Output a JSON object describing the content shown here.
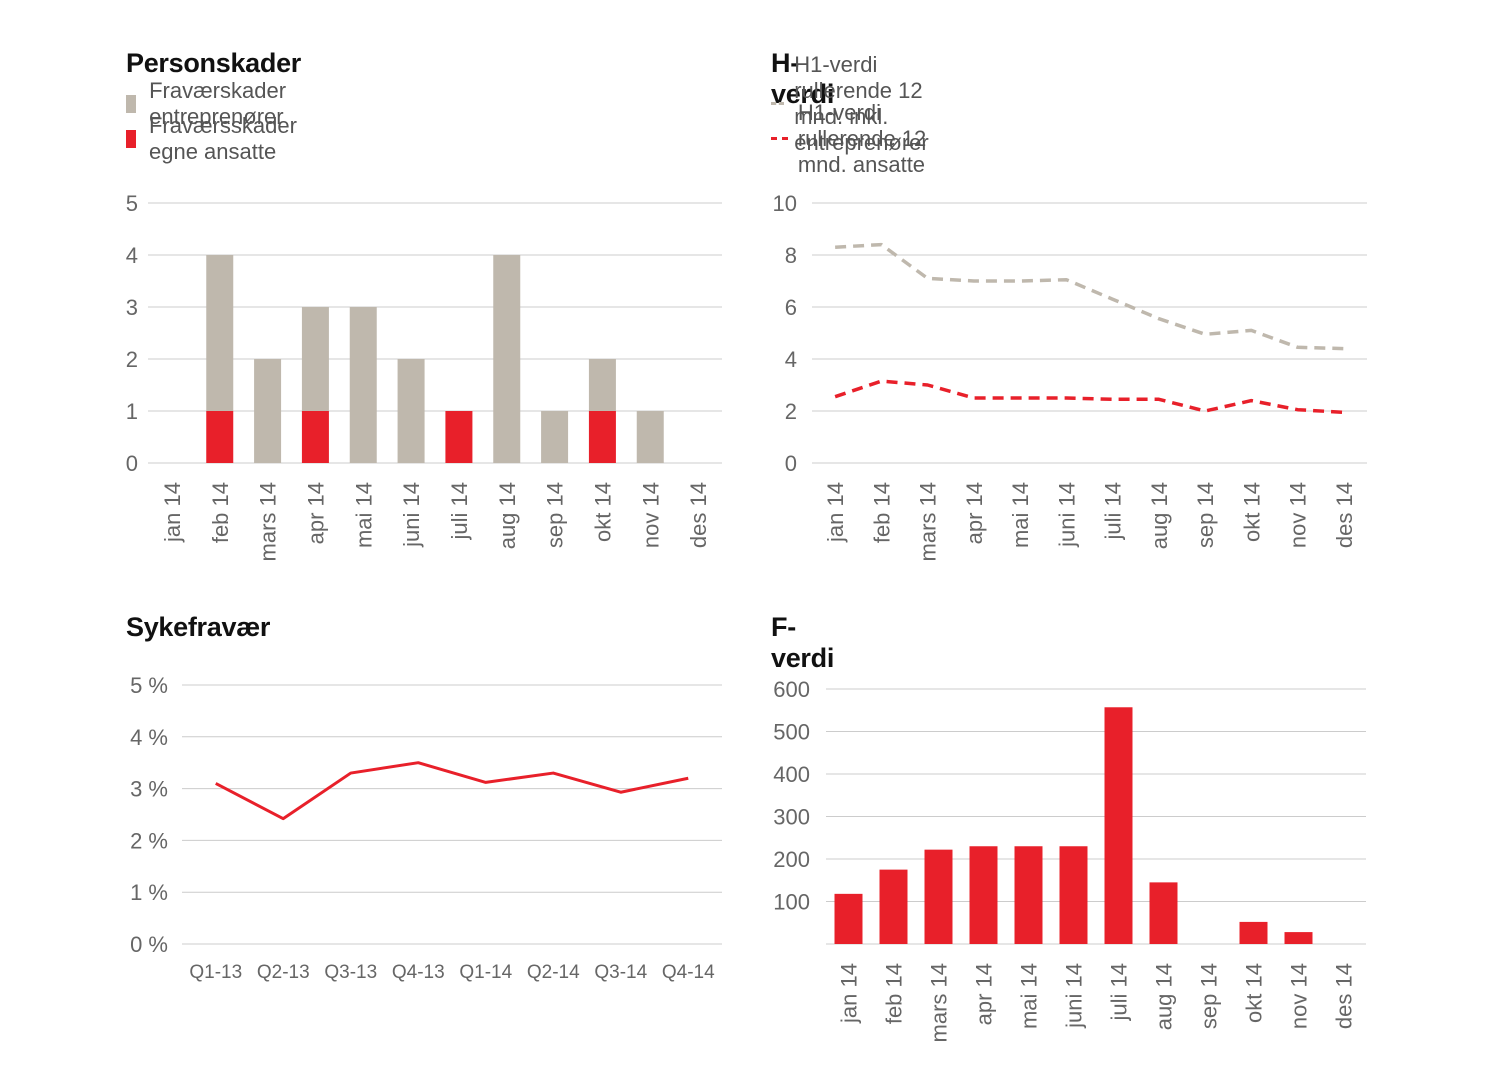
{
  "colors": {
    "grey": "#bfb8ad",
    "red": "#e8202a",
    "grid": "#cccccc",
    "tick": "#666666"
  },
  "months": [
    "jan 14",
    "feb 14",
    "mars 14",
    "apr 14",
    "mai 14",
    "juni 14",
    "juli 14",
    "aug 14",
    "sep 14",
    "okt 14",
    "nov 14",
    "des 14"
  ],
  "chart_data": [
    {
      "id": "personskader",
      "type": "bar",
      "stacked": true,
      "title": "Personskader",
      "categories": [
        "jan 14",
        "feb 14",
        "mars 14",
        "apr 14",
        "mai 14",
        "juni 14",
        "juli 14",
        "aug 14",
        "sep 14",
        "okt 14",
        "nov 14",
        "des 14"
      ],
      "series": [
        {
          "name": "Fraværskader entreprenører",
          "color": "#bfb8ad",
          "values": [
            0,
            3,
            2,
            2,
            3,
            2,
            0,
            4,
            1,
            1,
            1,
            0
          ]
        },
        {
          "name": "Fraværsskader egne ansatte",
          "color": "#e8202a",
          "values": [
            0,
            1,
            0,
            1,
            0,
            0,
            1,
            0,
            0,
            1,
            0,
            0
          ]
        }
      ],
      "ylim": [
        0,
        5
      ],
      "yticks": [
        "0",
        "1",
        "2",
        "3",
        "4",
        "5"
      ],
      "grid": true,
      "legend": "top-left"
    },
    {
      "id": "hverdi",
      "type": "line",
      "title": "H-verdi",
      "categories": [
        "jan 14",
        "feb 14",
        "mars 14",
        "apr 14",
        "mai 14",
        "juni 14",
        "juli 14",
        "aug 14",
        "sep 14",
        "okt 14",
        "nov 14",
        "des 14"
      ],
      "series": [
        {
          "name": "H1-verdi rullerende 12 mnd. inkl. entreprenører",
          "color": "#bfb8ad",
          "dashed": true,
          "values": [
            8.3,
            8.4,
            7.1,
            7.0,
            7.0,
            7.05,
            6.3,
            5.55,
            4.95,
            5.1,
            4.45,
            4.4
          ]
        },
        {
          "name": "H1-verdi rullerende 12 mnd. ansatte",
          "color": "#e8202a",
          "dashed": true,
          "values": [
            2.55,
            3.15,
            3.0,
            2.5,
            2.5,
            2.5,
            2.45,
            2.45,
            2.0,
            2.4,
            2.05,
            1.95
          ]
        }
      ],
      "ylim": [
        0,
        10
      ],
      "yticks": [
        "0",
        "2",
        "4",
        "6",
        "8",
        "10"
      ],
      "grid": true,
      "legend": "top-left"
    },
    {
      "id": "sykefravaer",
      "type": "line",
      "title": "Sykefravær",
      "categories": [
        "Q1-13",
        "Q2-13",
        "Q3-13",
        "Q4-13",
        "Q1-14",
        "Q2-14",
        "Q3-14",
        "Q4-14"
      ],
      "series": [
        {
          "color": "#e8202a",
          "values": [
            3.1,
            2.42,
            3.3,
            3.5,
            3.12,
            3.3,
            2.93,
            3.2
          ]
        }
      ],
      "ylim": [
        0,
        5
      ],
      "yticks": [
        "0 %",
        "1 %",
        "2 %",
        "3 %",
        "4 %",
        "5 %"
      ],
      "grid": true
    },
    {
      "id": "fverdi",
      "type": "bar",
      "title": "F-verdi",
      "categories": [
        "jan 14",
        "feb 14",
        "mars 14",
        "apr 14",
        "mai 14",
        "juni 14",
        "juli 14",
        "aug 14",
        "sep 14",
        "okt 14",
        "nov 14",
        "des 14"
      ],
      "series": [
        {
          "color": "#e8202a",
          "values": [
            118,
            175,
            222,
            230,
            230,
            230,
            557,
            145,
            0,
            52,
            28,
            0
          ]
        }
      ],
      "ylim": [
        0,
        600
      ],
      "yticks": [
        "",
        "100",
        "200",
        "300",
        "400",
        "500",
        "600"
      ],
      "grid": true
    }
  ]
}
